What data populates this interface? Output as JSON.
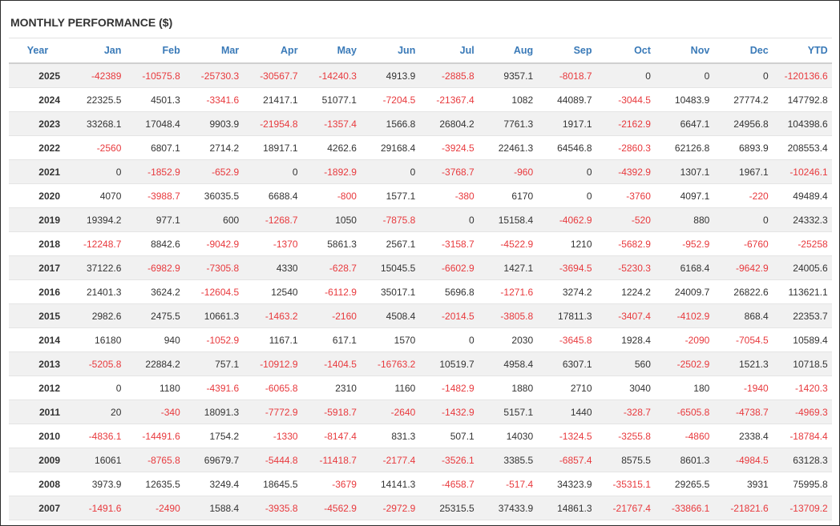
{
  "title": "MONTHLY PERFORMANCE ($)",
  "colors": {
    "header": "#3a7ab8",
    "negative": "#e8393d",
    "text": "#333333",
    "stripe": "#f1f1f1"
  },
  "table": {
    "headers": [
      "Year",
      "Jan",
      "Feb",
      "Mar",
      "Apr",
      "May",
      "Jun",
      "Jul",
      "Aug",
      "Sep",
      "Oct",
      "Nov",
      "Dec",
      "YTD"
    ],
    "rows": [
      [
        "2025",
        "-42389",
        "-10575.8",
        "-25730.3",
        "-30567.7",
        "-14240.3",
        "4913.9",
        "-2885.8",
        "9357.1",
        "-8018.7",
        "0",
        "0",
        "0",
        "-120136.6"
      ],
      [
        "2024",
        "22325.5",
        "4501.3",
        "-3341.6",
        "21417.1",
        "51077.1",
        "-7204.5",
        "-21367.4",
        "1082",
        "44089.7",
        "-3044.5",
        "10483.9",
        "27774.2",
        "147792.8"
      ],
      [
        "2023",
        "33268.1",
        "17048.4",
        "9903.9",
        "-21954.8",
        "-1357.4",
        "1566.8",
        "26804.2",
        "7761.3",
        "1917.1",
        "-2162.9",
        "6647.1",
        "24956.8",
        "104398.6"
      ],
      [
        "2022",
        "-2560",
        "6807.1",
        "2714.2",
        "18917.1",
        "4262.6",
        "29168.4",
        "-3924.5",
        "22461.3",
        "64546.8",
        "-2860.3",
        "62126.8",
        "6893.9",
        "208553.4"
      ],
      [
        "2021",
        "0",
        "-1852.9",
        "-652.9",
        "0",
        "-1892.9",
        "0",
        "-3768.7",
        "-960",
        "0",
        "-4392.9",
        "1307.1",
        "1967.1",
        "-10246.1"
      ],
      [
        "2020",
        "4070",
        "-3988.7",
        "36035.5",
        "6688.4",
        "-800",
        "1577.1",
        "-380",
        "6170",
        "0",
        "-3760",
        "4097.1",
        "-220",
        "49489.4"
      ],
      [
        "2019",
        "19394.2",
        "977.1",
        "600",
        "-1268.7",
        "1050",
        "-7875.8",
        "0",
        "15158.4",
        "-4062.9",
        "-520",
        "880",
        "0",
        "24332.3"
      ],
      [
        "2018",
        "-12248.7",
        "8842.6",
        "-9042.9",
        "-1370",
        "5861.3",
        "2567.1",
        "-3158.7",
        "-4522.9",
        "1210",
        "-5682.9",
        "-952.9",
        "-6760",
        "-25258"
      ],
      [
        "2017",
        "37122.6",
        "-6982.9",
        "-7305.8",
        "4330",
        "-628.7",
        "15045.5",
        "-6602.9",
        "1427.1",
        "-3694.5",
        "-5230.3",
        "6168.4",
        "-9642.9",
        "24005.6"
      ],
      [
        "2016",
        "21401.3",
        "3624.2",
        "-12604.5",
        "12540",
        "-6112.9",
        "35017.1",
        "5696.8",
        "-1271.6",
        "3274.2",
        "1224.2",
        "24009.7",
        "26822.6",
        "113621.1"
      ],
      [
        "2015",
        "2982.6",
        "2475.5",
        "10661.3",
        "-1463.2",
        "-2160",
        "4508.4",
        "-2014.5",
        "-3805.8",
        "17811.3",
        "-3407.4",
        "-4102.9",
        "868.4",
        "22353.7"
      ],
      [
        "2014",
        "16180",
        "940",
        "-1052.9",
        "1167.1",
        "617.1",
        "1570",
        "0",
        "2030",
        "-3645.8",
        "1928.4",
        "-2090",
        "-7054.5",
        "10589.4"
      ],
      [
        "2013",
        "-5205.8",
        "22884.2",
        "757.1",
        "-10912.9",
        "-1404.5",
        "-16763.2",
        "10519.7",
        "4958.4",
        "6307.1",
        "560",
        "-2502.9",
        "1521.3",
        "10718.5"
      ],
      [
        "2012",
        "0",
        "1180",
        "-4391.6",
        "-6065.8",
        "2310",
        "1160",
        "-1482.9",
        "1880",
        "2710",
        "3040",
        "180",
        "-1940",
        "-1420.3"
      ],
      [
        "2011",
        "20",
        "-340",
        "18091.3",
        "-7772.9",
        "-5918.7",
        "-2640",
        "-1432.9",
        "5157.1",
        "1440",
        "-328.7",
        "-6505.8",
        "-4738.7",
        "-4969.3"
      ],
      [
        "2010",
        "-4836.1",
        "-14491.6",
        "1754.2",
        "-1330",
        "-8147.4",
        "831.3",
        "507.1",
        "14030",
        "-1324.5",
        "-3255.8",
        "-4860",
        "2338.4",
        "-18784.4"
      ],
      [
        "2009",
        "16061",
        "-8765.8",
        "69679.7",
        "-5444.8",
        "-11418.7",
        "-2177.4",
        "-3526.1",
        "3385.5",
        "-6857.4",
        "8575.5",
        "8601.3",
        "-4984.5",
        "63128.3"
      ],
      [
        "2008",
        "3973.9",
        "12635.5",
        "3249.4",
        "18645.5",
        "-3679",
        "14141.3",
        "-4658.7",
        "-517.4",
        "34323.9",
        "-35315.1",
        "29265.5",
        "3931",
        "75995.8"
      ],
      [
        "2007",
        "-1491.6",
        "-2490",
        "1588.4",
        "-3935.8",
        "-4562.9",
        "-2972.9",
        "25315.5",
        "37433.9",
        "14861.3",
        "-21767.4",
        "-33866.1",
        "-21821.6",
        "-13709.2"
      ]
    ]
  }
}
